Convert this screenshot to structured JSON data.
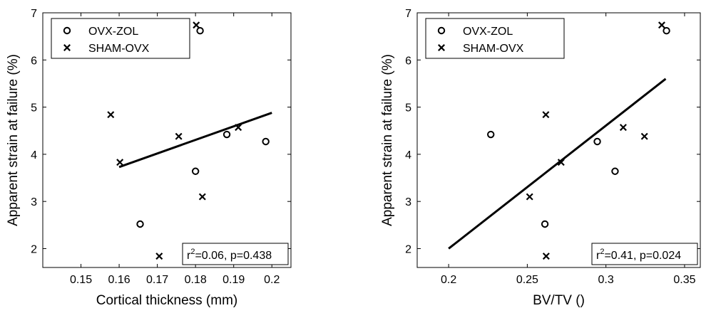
{
  "chart_data": [
    {
      "type": "scatter",
      "title": "",
      "xlabel": "Cortical thickness (mm)",
      "ylabel": "Apparent strain at failure (%)",
      "xlim": [
        0.14,
        0.205
      ],
      "ylim": [
        1.6,
        7
      ],
      "xticks": [
        0.15,
        0.16,
        0.17,
        0.18,
        0.19,
        0.2
      ],
      "xtick_labels": [
        "0.15",
        "0.16",
        "0.17",
        "0.18",
        "0.19",
        "0.2"
      ],
      "yticks": [
        2,
        3,
        4,
        5,
        6,
        7
      ],
      "ytick_labels": [
        "2",
        "3",
        "4",
        "5",
        "6",
        "7"
      ],
      "grid": false,
      "legend_position": "top-left",
      "series": [
        {
          "name": "OVX-ZOL",
          "marker": "circle",
          "points": [
            [
              0.1655,
              2.52
            ],
            [
              0.18,
              3.64
            ],
            [
              0.1882,
              4.42
            ],
            [
              0.1984,
              4.27
            ],
            [
              0.1812,
              6.62
            ]
          ]
        },
        {
          "name": "SHAM-OVX",
          "marker": "x",
          "points": [
            [
              0.1578,
              4.84
            ],
            [
              0.1602,
              3.83
            ],
            [
              0.1705,
              1.84
            ],
            [
              0.1756,
              4.38
            ],
            [
              0.1818,
              3.1
            ],
            [
              0.1912,
              4.57
            ],
            [
              0.1802,
              6.74
            ]
          ]
        }
      ],
      "fit_line": {
        "x": [
          0.16,
          0.2
        ],
        "y": [
          3.73,
          4.88
        ]
      },
      "annotation": {
        "prefix": "r",
        "superscript": "2",
        "text": "=0.06, p=0.438"
      }
    },
    {
      "type": "scatter",
      "title": "",
      "xlabel": "BV/TV ()",
      "ylabel": "Apparent strain at failure (%)",
      "xlim": [
        0.18,
        0.36
      ],
      "ylim": [
        1.6,
        7
      ],
      "xticks": [
        0.2,
        0.25,
        0.3,
        0.35
      ],
      "xtick_labels": [
        "0.2",
        "0.25",
        "0.3",
        "0.35"
      ],
      "yticks": [
        2,
        3,
        4,
        5,
        6,
        7
      ],
      "ytick_labels": [
        "2",
        "3",
        "4",
        "5",
        "6",
        "7"
      ],
      "grid": false,
      "legend_position": "top-left",
      "series": [
        {
          "name": "OVX-ZOL",
          "marker": "circle",
          "points": [
            [
              0.2268,
              4.42
            ],
            [
              0.2612,
              2.52
            ],
            [
              0.2945,
              4.27
            ],
            [
              0.3058,
              3.64
            ],
            [
              0.3385,
              6.62
            ]
          ]
        },
        {
          "name": "SHAM-OVX",
          "marker": "x",
          "points": [
            [
              0.2618,
              4.84
            ],
            [
              0.2515,
              3.1
            ],
            [
              0.2715,
              3.83
            ],
            [
              0.262,
              1.84
            ],
            [
              0.311,
              4.57
            ],
            [
              0.3245,
              4.38
            ],
            [
              0.3355,
              6.74
            ]
          ]
        }
      ],
      "fit_line": {
        "x": [
          0.2,
          0.338
        ],
        "y": [
          2.0,
          5.6
        ]
      },
      "annotation": {
        "prefix": "r",
        "superscript": "2",
        "text": "=0.41, p=0.024"
      }
    }
  ]
}
